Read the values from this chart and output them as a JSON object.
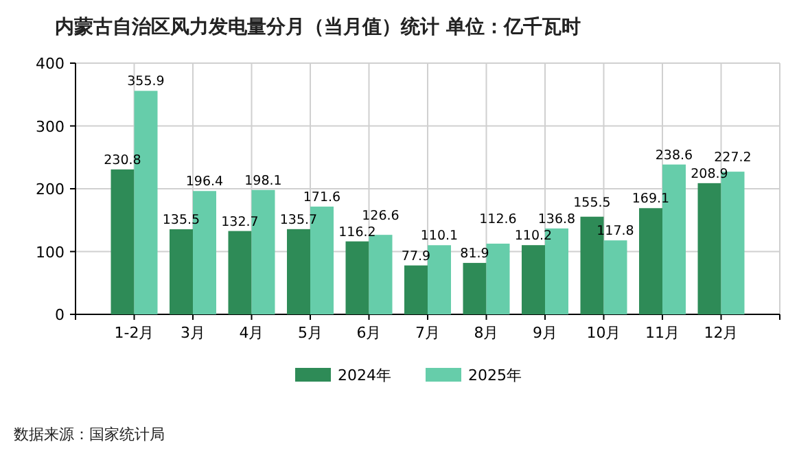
{
  "chart_data": {
    "type": "bar",
    "title": "内蒙古自治区风力发电量分月（当月值）统计  单位：亿千瓦时",
    "categories": [
      "1-2月",
      "3月",
      "4月",
      "5月",
      "6月",
      "7月",
      "8月",
      "9月",
      "10月",
      "11月",
      "12月"
    ],
    "series": [
      {
        "name": "2024年",
        "color": "#2e8b57",
        "values": [
          230.8,
          135.5,
          132.7,
          135.7,
          116.2,
          77.9,
          81.9,
          110.2,
          155.5,
          169.1,
          208.9
        ]
      },
      {
        "name": "2025年",
        "color": "#66cdaa",
        "values": [
          355.9,
          196.4,
          198.1,
          171.6,
          126.6,
          110.1,
          112.6,
          136.8,
          117.8,
          238.6,
          227.2
        ]
      }
    ],
    "ylim": [
      0,
      400
    ],
    "yticks": [
      0,
      100,
      200,
      300,
      400
    ],
    "grid": true,
    "legend": "bottom",
    "data_labels": true,
    "annotations": [
      "数据来源：国家统计局"
    ]
  }
}
